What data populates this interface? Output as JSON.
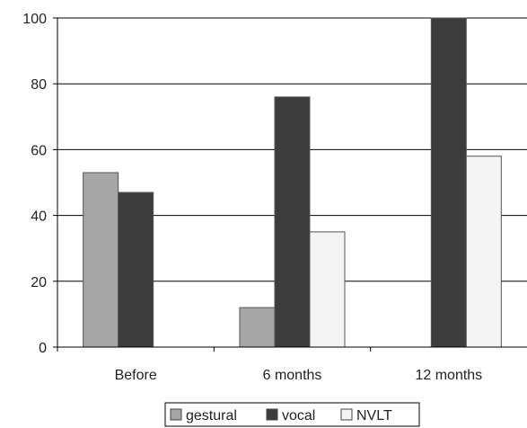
{
  "chart_data": {
    "type": "bar",
    "categories": [
      "Before",
      "6 months",
      "12 months"
    ],
    "series": [
      {
        "name": "gestural",
        "values": [
          53,
          12,
          0
        ]
      },
      {
        "name": "vocal",
        "values": [
          47,
          76,
          100
        ]
      },
      {
        "name": "NVLT",
        "values": [
          0,
          35,
          58
        ]
      }
    ],
    "ylim": [
      0,
      100
    ],
    "yticks": [
      0,
      20,
      40,
      60,
      80,
      100
    ],
    "grid": true,
    "legend": "bottom",
    "title": "",
    "xlabel": "",
    "ylabel": ""
  },
  "colors": {
    "gestural": "#a6a6a6",
    "vocal": "#3c3c3c",
    "NVLT": "#f4f4f4",
    "gridline": "#000000",
    "bar_stroke": "#555555"
  }
}
